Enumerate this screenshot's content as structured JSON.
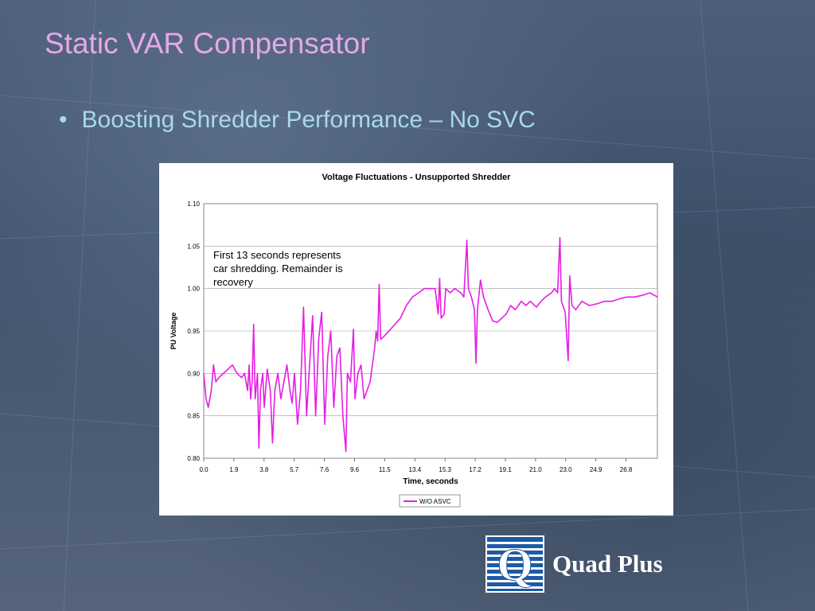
{
  "slide": {
    "title": "Static VAR Compensator",
    "bullet_marker": "•",
    "bullet_text": "Boosting Shredder Performance – No SVC"
  },
  "logo": {
    "text": "Quad Plus",
    "mark_letter": "Q",
    "mark_color": "#1d5aa8"
  },
  "colors": {
    "title": "#e6a8e8",
    "bullet": "#a9d8ee",
    "series": "#e51ee5",
    "grid": "#9a9a9a"
  },
  "chart_data": {
    "type": "line",
    "title": "Voltage Fluctuations - Unsupported Shredder",
    "xlabel": "Time, seconds",
    "ylabel": "PU Voltage",
    "xlim": [
      0,
      30
    ],
    "ylim": [
      0.8,
      1.1
    ],
    "x_ticks": [
      "0.0",
      "1.9",
      "3.8",
      "5.7",
      "7.6",
      "9.6",
      "11.5",
      "13.4",
      "15.3",
      "17.2",
      "19.1",
      "21.0",
      "23.0",
      "24.9",
      "26.8"
    ],
    "y_ticks": [
      "0.80",
      "0.85",
      "0.90",
      "0.95",
      "1.00",
      "1.05",
      "1.10"
    ],
    "grid": true,
    "legend_position": "bottom",
    "annotation": [
      "First 13 seconds represents",
      "car shredding.  Remainder is",
      "recovery"
    ],
    "series": [
      {
        "name": "W/O ASVC",
        "points": [
          [
            0.0,
            0.9
          ],
          [
            0.15,
            0.87
          ],
          [
            0.3,
            0.86
          ],
          [
            0.5,
            0.88
          ],
          [
            0.65,
            0.91
          ],
          [
            0.8,
            0.89
          ],
          [
            1.0,
            0.895
          ],
          [
            1.3,
            0.9
          ],
          [
            1.6,
            0.905
          ],
          [
            1.9,
            0.91
          ],
          [
            2.2,
            0.9
          ],
          [
            2.5,
            0.895
          ],
          [
            2.7,
            0.9
          ],
          [
            2.9,
            0.88
          ],
          [
            3.0,
            0.91
          ],
          [
            3.1,
            0.87
          ],
          [
            3.2,
            0.89
          ],
          [
            3.3,
            0.958
          ],
          [
            3.4,
            0.87
          ],
          [
            3.55,
            0.9
          ],
          [
            3.65,
            0.812
          ],
          [
            3.75,
            0.88
          ],
          [
            3.9,
            0.9
          ],
          [
            4.0,
            0.86
          ],
          [
            4.2,
            0.905
          ],
          [
            4.4,
            0.88
          ],
          [
            4.55,
            0.818
          ],
          [
            4.7,
            0.88
          ],
          [
            4.9,
            0.9
          ],
          [
            5.1,
            0.87
          ],
          [
            5.3,
            0.89
          ],
          [
            5.5,
            0.91
          ],
          [
            5.7,
            0.88
          ],
          [
            5.85,
            0.865
          ],
          [
            6.0,
            0.9
          ],
          [
            6.2,
            0.84
          ],
          [
            6.4,
            0.88
          ],
          [
            6.6,
            0.978
          ],
          [
            6.8,
            0.85
          ],
          [
            7.0,
            0.91
          ],
          [
            7.2,
            0.968
          ],
          [
            7.4,
            0.85
          ],
          [
            7.6,
            0.94
          ],
          [
            7.8,
            0.972
          ],
          [
            8.0,
            0.84
          ],
          [
            8.2,
            0.92
          ],
          [
            8.4,
            0.95
          ],
          [
            8.6,
            0.86
          ],
          [
            8.8,
            0.92
          ],
          [
            9.0,
            0.93
          ],
          [
            9.2,
            0.85
          ],
          [
            9.4,
            0.808
          ],
          [
            9.5,
            0.9
          ],
          [
            9.7,
            0.89
          ],
          [
            9.9,
            0.952
          ],
          [
            10.0,
            0.87
          ],
          [
            10.2,
            0.9
          ],
          [
            10.4,
            0.91
          ],
          [
            10.6,
            0.87
          ],
          [
            10.8,
            0.88
          ],
          [
            11.0,
            0.89
          ],
          [
            11.15,
            0.91
          ],
          [
            11.3,
            0.93
          ],
          [
            11.4,
            0.95
          ],
          [
            11.5,
            0.938
          ],
          [
            11.6,
            1.005
          ],
          [
            11.7,
            0.94
          ],
          [
            12.0,
            0.945
          ],
          [
            12.5,
            0.955
          ],
          [
            13.0,
            0.965
          ],
          [
            13.4,
            0.98
          ],
          [
            13.8,
            0.99
          ],
          [
            14.2,
            0.995
          ],
          [
            14.6,
            1.0
          ],
          [
            15.0,
            1.0
          ],
          [
            15.3,
            1.0
          ],
          [
            15.5,
            0.97
          ],
          [
            15.6,
            1.012
          ],
          [
            15.7,
            0.965
          ],
          [
            15.9,
            0.97
          ],
          [
            16.0,
            1.0
          ],
          [
            16.3,
            0.995
          ],
          [
            16.6,
            1.0
          ],
          [
            17.0,
            0.995
          ],
          [
            17.2,
            0.99
          ],
          [
            17.4,
            1.057
          ],
          [
            17.5,
            1.0
          ],
          [
            17.7,
            0.99
          ],
          [
            17.9,
            0.975
          ],
          [
            18.0,
            0.912
          ],
          [
            18.1,
            0.975
          ],
          [
            18.3,
            1.01
          ],
          [
            18.5,
            0.99
          ],
          [
            18.8,
            0.975
          ],
          [
            19.1,
            0.962
          ],
          [
            19.4,
            0.96
          ],
          [
            19.7,
            0.965
          ],
          [
            20.0,
            0.97
          ],
          [
            20.3,
            0.98
          ],
          [
            20.6,
            0.975
          ],
          [
            21.0,
            0.985
          ],
          [
            21.3,
            0.98
          ],
          [
            21.6,
            0.985
          ],
          [
            22.0,
            0.978
          ],
          [
            22.3,
            0.985
          ],
          [
            22.6,
            0.99
          ],
          [
            23.0,
            0.995
          ],
          [
            23.2,
            1.0
          ],
          [
            23.4,
            0.995
          ],
          [
            23.55,
            1.06
          ],
          [
            23.65,
            0.985
          ],
          [
            23.9,
            0.972
          ],
          [
            24.1,
            0.915
          ],
          [
            24.2,
            1.015
          ],
          [
            24.35,
            0.98
          ],
          [
            24.6,
            0.975
          ],
          [
            25.0,
            0.985
          ],
          [
            25.5,
            0.98
          ],
          [
            26.0,
            0.982
          ],
          [
            26.5,
            0.985
          ],
          [
            27.0,
            0.985
          ],
          [
            27.5,
            0.988
          ],
          [
            28.0,
            0.99
          ],
          [
            28.5,
            0.99
          ],
          [
            29.0,
            0.992
          ],
          [
            29.5,
            0.995
          ],
          [
            30.0,
            0.99
          ]
        ]
      }
    ]
  }
}
